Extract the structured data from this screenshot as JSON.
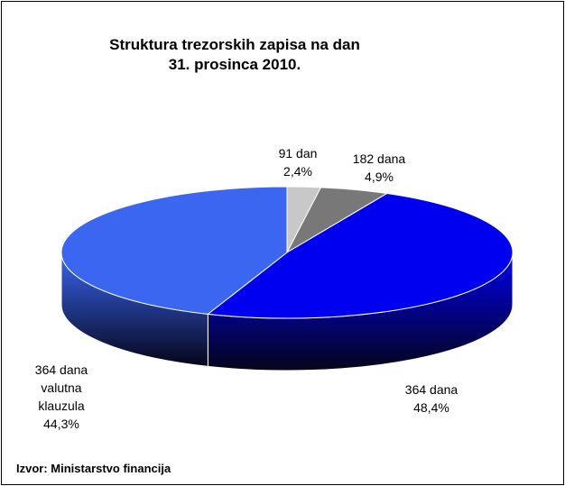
{
  "chart_data": {
    "type": "pie",
    "title": [
      "Struktura trezorskih zapisa na dan",
      "31. prosinca 2010."
    ],
    "categories": [
      "91 dan",
      "182 dana",
      "364 dana",
      "364 dana valutna klauzula"
    ],
    "values": [
      2.4,
      4.9,
      48.4,
      44.3
    ],
    "value_labels": [
      "2,4%",
      "4,9%",
      "48,4%",
      "44,3%"
    ],
    "colors": [
      "#c8c8c8",
      "#787878",
      "#0000f0",
      "#3a66f0"
    ],
    "source": "Izvor: Ministarstvo financija"
  }
}
